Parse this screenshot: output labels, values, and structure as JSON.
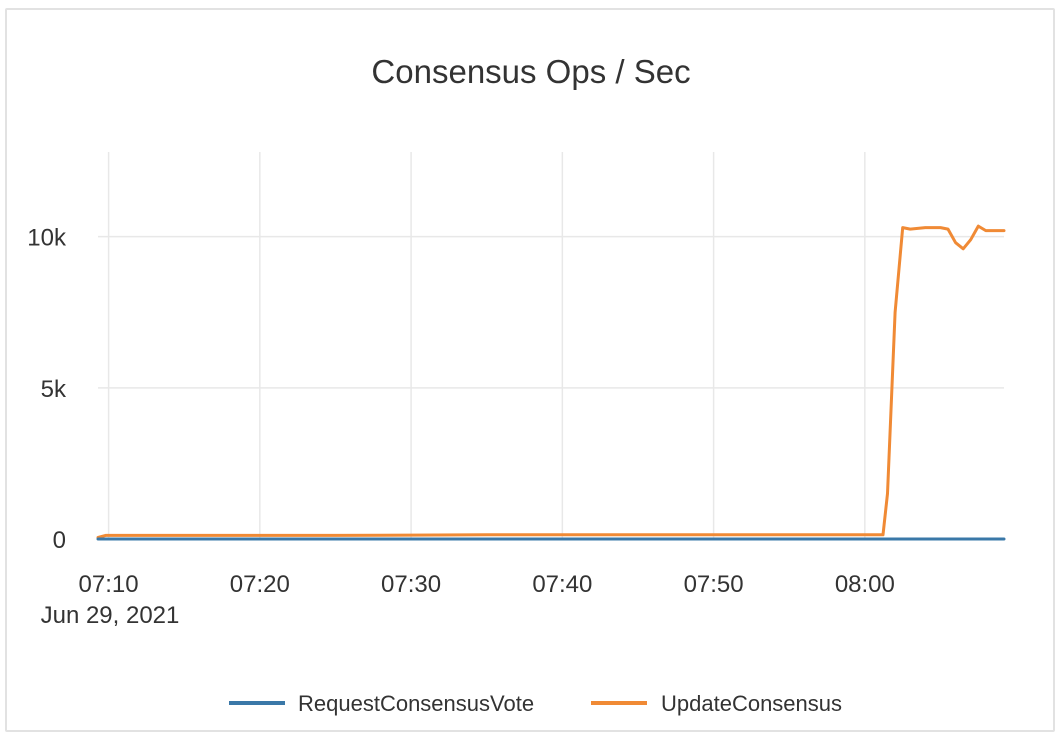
{
  "chart_data": {
    "type": "line",
    "title": "Consensus Ops / Sec",
    "xlabel": "",
    "ylabel": "",
    "x_tick_labels": [
      "07:10",
      "07:20",
      "07:30",
      "07:40",
      "07:50",
      "08:00"
    ],
    "x_date_label": "Jun 29, 2021",
    "y_tick_labels": [
      "0",
      "5k",
      "10k"
    ],
    "y_ticks": [
      0,
      5000,
      10000
    ],
    "ylim": [
      0,
      12800
    ],
    "x_unit": "minutes after 07:00",
    "xlim": [
      9.3,
      69.2
    ],
    "grid": true,
    "legend_position": "bottom",
    "series": [
      {
        "name": "RequestConsensusVote",
        "color": "#3a78a8",
        "x": [
          9.3,
          69.2
        ],
        "y": [
          0,
          0
        ]
      },
      {
        "name": "UpdateConsensus",
        "color": "#f08a35",
        "x": [
          9.3,
          9.8,
          15,
          20,
          25,
          30,
          35,
          40,
          45,
          50,
          55,
          60,
          61.2,
          61.5,
          62,
          62.5,
          63,
          64,
          65,
          65.5,
          66,
          66.5,
          67,
          67.5,
          68,
          68.5,
          69.2
        ],
        "y": [
          50,
          120,
          120,
          120,
          120,
          130,
          140,
          140,
          140,
          140,
          140,
          140,
          140,
          1500,
          7500,
          10300,
          10250,
          10300,
          10300,
          10250,
          9800,
          9600,
          9900,
          10350,
          10200,
          10200,
          10200
        ]
      }
    ]
  }
}
